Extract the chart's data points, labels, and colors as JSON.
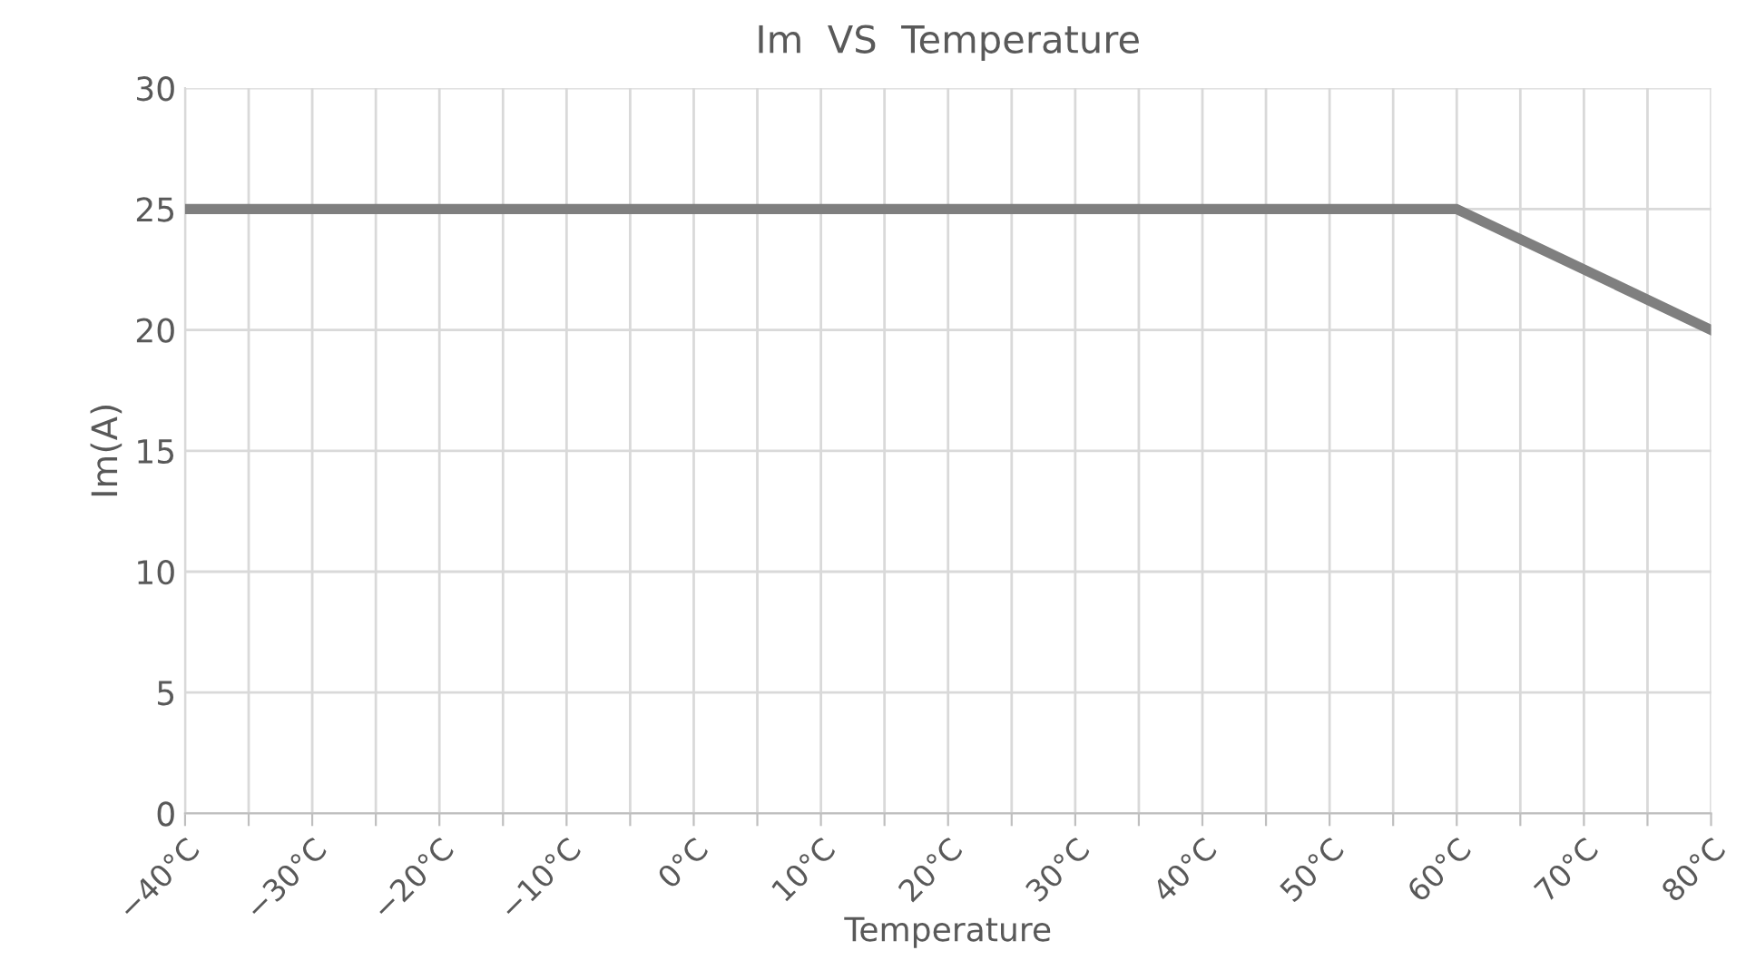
{
  "chart_data": {
    "type": "line",
    "title": "Im  VS  Temperature",
    "xlabel": "Temperature",
    "ylabel": "Im(A)",
    "x": [
      -40,
      60,
      80
    ],
    "series": [
      {
        "color": "#7f7f7f",
        "values": [
          25,
          25,
          20
        ]
      }
    ],
    "xlim": [
      -40,
      80
    ],
    "ylim": [
      0,
      30
    ],
    "xticks": [
      {
        "value": -40,
        "label": "−40°C"
      },
      {
        "value": -35,
        "label": null
      },
      {
        "value": -30,
        "label": "−30°C"
      },
      {
        "value": -25,
        "label": null
      },
      {
        "value": -20,
        "label": "−20°C"
      },
      {
        "value": -15,
        "label": null
      },
      {
        "value": -10,
        "label": "−10°C"
      },
      {
        "value": -5,
        "label": null
      },
      {
        "value": 0,
        "label": "0°C"
      },
      {
        "value": 5,
        "label": null
      },
      {
        "value": 10,
        "label": "10°C"
      },
      {
        "value": 15,
        "label": null
      },
      {
        "value": 20,
        "label": "20°C"
      },
      {
        "value": 25,
        "label": null
      },
      {
        "value": 30,
        "label": "30°C"
      },
      {
        "value": 35,
        "label": null
      },
      {
        "value": 40,
        "label": "40°C"
      },
      {
        "value": 45,
        "label": null
      },
      {
        "value": 50,
        "label": "50°C"
      },
      {
        "value": 55,
        "label": null
      },
      {
        "value": 60,
        "label": "60°C"
      },
      {
        "value": 65,
        "label": null
      },
      {
        "value": 70,
        "label": "70°C"
      },
      {
        "value": 75,
        "label": null
      },
      {
        "value": 80,
        "label": "80°C"
      }
    ],
    "yticks": [
      0,
      5,
      10,
      15,
      20,
      25,
      30
    ],
    "grid": true,
    "line_style": "solid",
    "marker": "none"
  }
}
